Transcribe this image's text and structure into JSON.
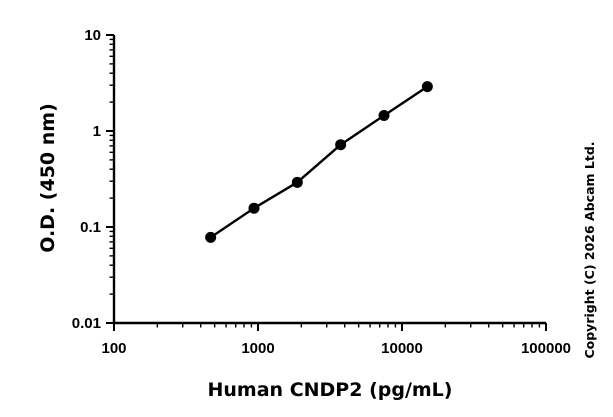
{
  "chart_data": {
    "type": "line",
    "xlabel": "Human CNDP2 (pg/mL)",
    "ylabel": "O.D. (450 nm)",
    "xscale": "log",
    "yscale": "log",
    "xlim": [
      100,
      100000
    ],
    "ylim": [
      0.01,
      10
    ],
    "grid": false,
    "x_ticks": [
      "100",
      "1000",
      "10000",
      "100000"
    ],
    "y_ticks": [
      "0.01",
      "0.1",
      "1",
      "10"
    ],
    "series": [
      {
        "x": [
          469,
          938,
          1875,
          3750,
          7500,
          15000
        ],
        "y": [
          0.078,
          0.157,
          0.292,
          0.72,
          1.45,
          2.9
        ]
      }
    ],
    "colors": {
      "line": "#000000",
      "marker": "#000000"
    }
  },
  "copyright": "Copyright (C) 2026 Abcam Ltd."
}
